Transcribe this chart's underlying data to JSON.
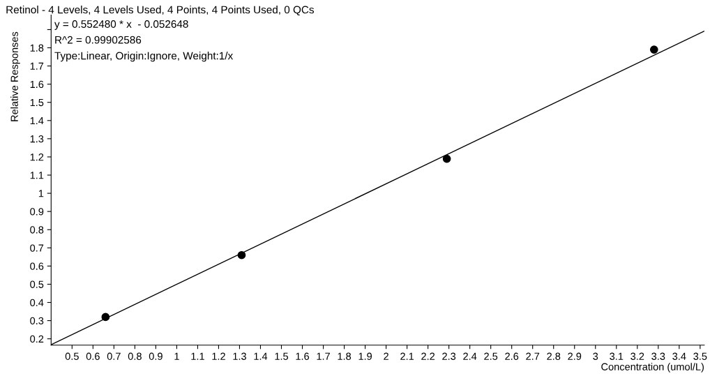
{
  "chart_data": {
    "type": "scatter",
    "title": "Retinol - 4 Levels, 4 Levels Used, 4 Points, 4 Points Used, 0 QCs",
    "xlabel": "Concentration (umol/L)",
    "ylabel": "Relative Responses",
    "annotations": [
      "y = 0.552480 * x  - 0.052648",
      "R^2 = 0.99902586",
      "Type:Linear, Origin:Ignore, Weight:1/x"
    ],
    "x": [
      0.66,
      1.31,
      2.29,
      3.28
    ],
    "series": [
      {
        "color": "#000000",
        "marker": "circle",
        "values": [
          0.32,
          0.66,
          1.19,
          1.79
        ]
      },
      {
        "type": "line",
        "color": "#000000",
        "marker": "none",
        "line_style": "solid",
        "x": [
          0.4,
          3.52
        ],
        "values": [
          0.168,
          1.892
        ]
      }
    ],
    "xlim": [
      0.4,
      3.52
    ],
    "ylim": [
      0.165,
      1.98
    ],
    "xticks": [
      0.5,
      0.6,
      0.7,
      0.8,
      0.9,
      1,
      1.1,
      1.2,
      1.3,
      1.4,
      1.5,
      1.6,
      1.7,
      1.8,
      1.9,
      2,
      2.1,
      2.2,
      2.3,
      2.4,
      2.5,
      2.6,
      2.7,
      2.8,
      2.9,
      3,
      3.1,
      3.2,
      3.3,
      3.4,
      3.5
    ],
    "yticks": [
      0.2,
      0.3,
      0.4,
      0.5,
      0.6,
      0.7,
      0.8,
      0.9,
      1,
      1.1,
      1.2,
      1.3,
      1.4,
      1.5,
      1.6,
      1.7,
      1.8,
      {
        "value": 1.9,
        "label": null
      }
    ],
    "grid": false,
    "legend": false
  }
}
